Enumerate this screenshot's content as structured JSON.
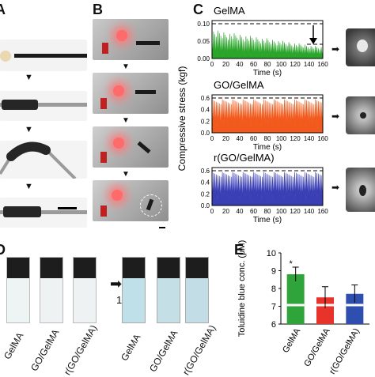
{
  "panels": {
    "A": "A",
    "B": "B",
    "C": "C",
    "D": "D",
    "E": "E"
  },
  "panel_c": {
    "y_axis_label": "Compressive stress (kgf)",
    "x_axis_label": "Time (s)",
    "x_ticks": [
      "0",
      "20",
      "40",
      "60",
      "80",
      "100",
      "120",
      "140",
      "160"
    ],
    "charts": [
      {
        "title": "GelMA",
        "color": "#2aa52a",
        "y_ticks": [
          "0.10",
          "0.05",
          "0.00"
        ]
      },
      {
        "title": "GO/GelMA",
        "color": "#f25a1d",
        "y_ticks": [
          "0.6",
          "0.4",
          "0.2",
          "0.0"
        ]
      },
      {
        "title": "r(GO/GelMA)",
        "color": "#3b3fb5",
        "y_ticks": [
          "0.6",
          "0.4",
          "0.2",
          "0.0"
        ]
      }
    ]
  },
  "panel_d": {
    "before_labels": [
      "GelMA",
      "GO/GelMA",
      "r(GO/GelMA)"
    ],
    "after_labels": [
      "GelMA",
      "GO/GelMA",
      "r(GO/GelMA)"
    ],
    "arrow_label": "1h"
  },
  "chart_data": {
    "type": "bar",
    "categories": [
      "GelMA",
      "GO/GelMA",
      "r(GO/GelMA)"
    ],
    "values": [
      8.8,
      7.5,
      7.7
    ],
    "errors": [
      0.4,
      0.6,
      0.5
    ],
    "colors": [
      "#2ea43a",
      "#e8332a",
      "#2f4fb0"
    ],
    "ylabel": "Toluidine blue conc. (μM)",
    "y_ticks": [
      "10",
      "9",
      "8",
      "7",
      "6"
    ],
    "ylim": [
      6,
      10
    ],
    "annotation": "*"
  }
}
